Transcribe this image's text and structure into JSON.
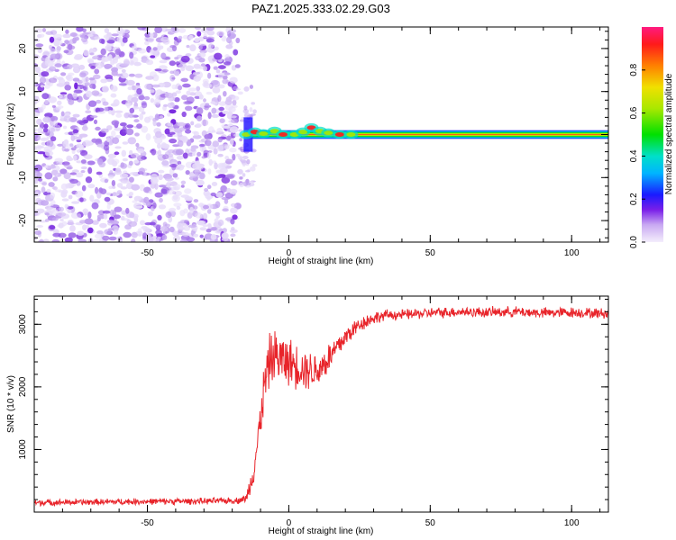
{
  "chart_data": [
    {
      "type": "heatmap",
      "title": "PAZ1.2025.333.02.29.G03",
      "xlabel": "Height of straight line (km)",
      "ylabel": "Frequency (Hz)",
      "xlim": [
        -90,
        113
      ],
      "ylim": [
        -25,
        25
      ],
      "xticks": [
        -50,
        0,
        50,
        100
      ],
      "yticks": [
        -20,
        -10,
        0,
        10,
        20
      ],
      "colorbar": {
        "label": "Normalized spectral amplitude",
        "range": [
          0,
          1
        ],
        "ticks": [
          0.0,
          0.2,
          0.4,
          0.6,
          0.8
        ],
        "tick_labels": [
          "0.0",
          "0.2",
          "0.4",
          "0.6",
          "0.8"
        ],
        "colormap": "rainbow (white/lavender low to magenta high)"
      },
      "description_values": {
        "noise_region_x": [
          -90,
          -18
        ],
        "signal_onset_x": -15,
        "signal_frequency_hz": 0,
        "signal_band_halfwidth_hz": 1
      }
    },
    {
      "type": "line",
      "xlabel": "Height of straight line (km)",
      "ylabel": "SNR (10 * v/v)",
      "xlim": [
        -90,
        113
      ],
      "ylim": [
        0,
        3450
      ],
      "xticks": [
        -50,
        0,
        50,
        100
      ],
      "yticks": [
        1000,
        2000,
        3000
      ],
      "series": [
        {
          "name": "SNR",
          "color": "#e8242a",
          "x": [
            -90,
            -70,
            -50,
            -30,
            -18,
            -15,
            -13,
            -11,
            -9,
            -7,
            -5,
            -3,
            0,
            5,
            10,
            15,
            20,
            25,
            30,
            35,
            40,
            50,
            60,
            70,
            80,
            90,
            100,
            113
          ],
          "y": [
            150,
            160,
            170,
            175,
            185,
            220,
            550,
            1100,
            1900,
            2400,
            2500,
            2450,
            2400,
            2300,
            2250,
            2500,
            2800,
            3000,
            3100,
            3150,
            3150,
            3180,
            3200,
            3190,
            3200,
            3180,
            3190,
            3170
          ],
          "noise": [
            60,
            60,
            60,
            60,
            60,
            80,
            250,
            350,
            450,
            500,
            500,
            500,
            450,
            400,
            350,
            300,
            200,
            150,
            120,
            100,
            100,
            100,
            100,
            100,
            100,
            100,
            100,
            100
          ]
        }
      ]
    }
  ]
}
